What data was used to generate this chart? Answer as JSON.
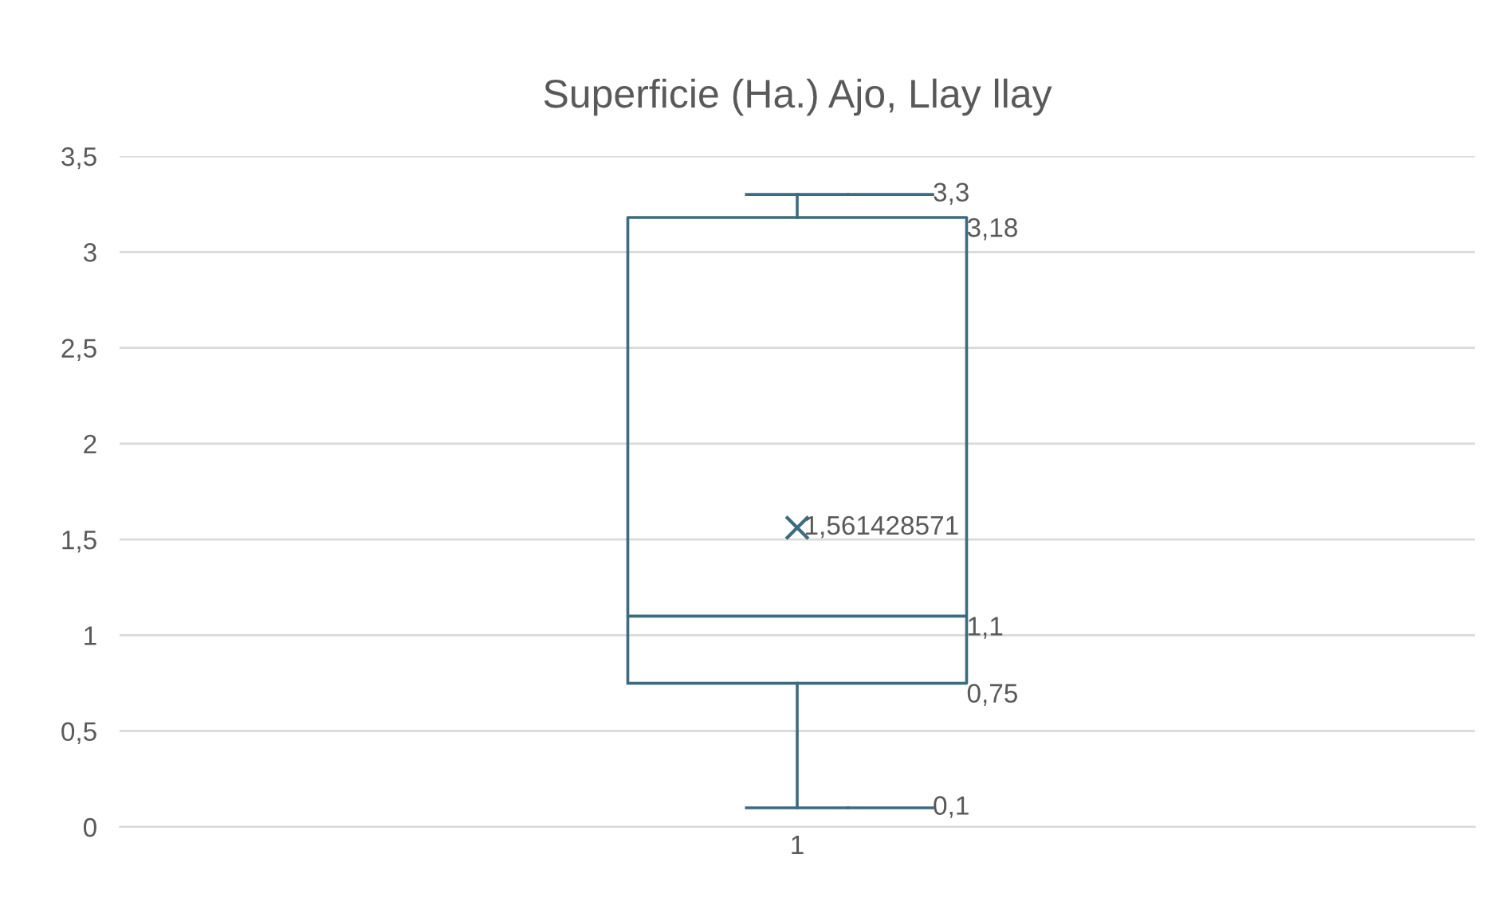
{
  "chart_data": {
    "type": "box",
    "title": "Superficie (Ha.) Ajo, Llay llay",
    "categories": [
      "1"
    ],
    "boxes": [
      {
        "low": 0.1,
        "q1": 0.75,
        "median": 1.1,
        "q3": 3.18,
        "high": 3.3,
        "mean": 1.561428571
      }
    ],
    "color": "#3b6b80",
    "ylim": [
      0,
      3.5
    ],
    "yticks": [
      0,
      {
        "value": 0.5,
        "label": "0,5"
      },
      1,
      {
        "value": 1.5,
        "label": "1,5"
      },
      2,
      {
        "value": 2.5,
        "label": "2,5"
      },
      3,
      {
        "value": 3.5,
        "label": "3,5"
      }
    ],
    "grid": "y",
    "marker": "cross",
    "annotations": [
      "3,3",
      "3,18",
      "1,561428571",
      "1,1",
      "0,75",
      "0,1"
    ]
  }
}
